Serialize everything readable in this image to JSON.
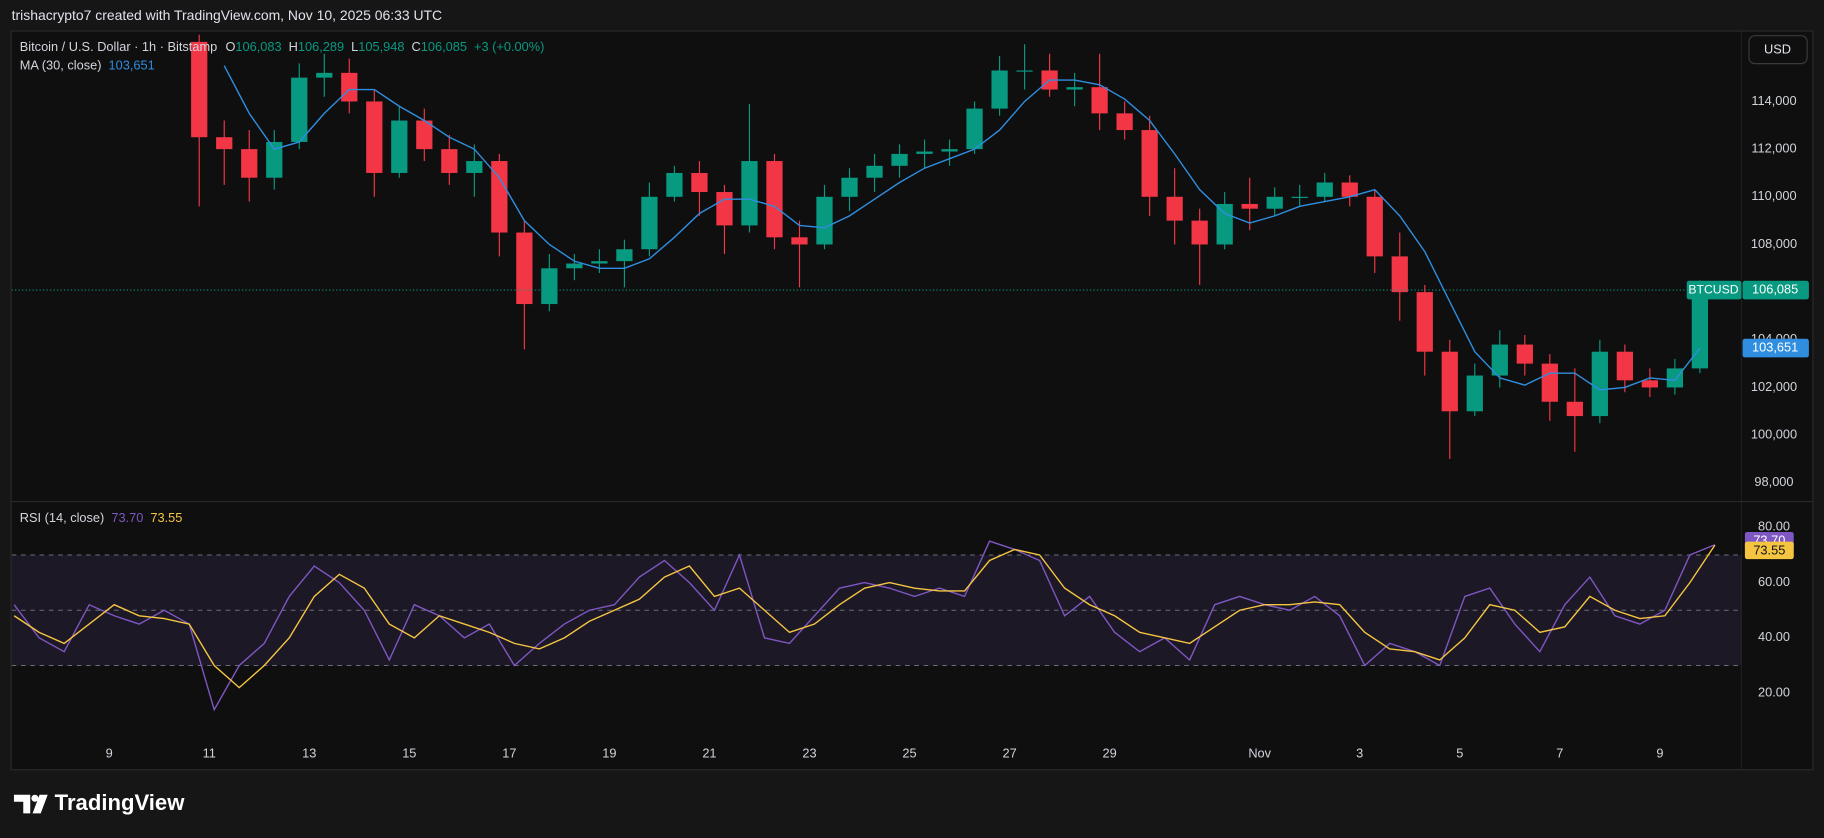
{
  "header": {
    "text": "trishacrypto7 created with TradingView.com, Nov 10, 2025 06:33 UTC"
  },
  "currency": "USD",
  "brand": "TradingView",
  "chart_data": [
    {
      "type": "candlestick",
      "title": "Bitcoin / U.S. Dollar · 1h · Bitstamp",
      "ohlc_labels": [
        {
          "key": "O",
          "value": "106,083"
        },
        {
          "key": "H",
          "value": "106,289"
        },
        {
          "key": "L",
          "value": "105,948"
        },
        {
          "key": "C",
          "value": "106,085"
        }
      ],
      "change": "+3 (+0.00%)",
      "up_color": "#089981",
      "down_color": "#f23645",
      "x": [
        10.8,
        11.3,
        11.8,
        12.3,
        12.8,
        13.3,
        13.8,
        14.3,
        14.8,
        15.3,
        15.8,
        16.3,
        16.8,
        17.3,
        17.8,
        18.3,
        18.8,
        19.3,
        19.8,
        20.3,
        20.8,
        21.3,
        21.8,
        22.3,
        22.8,
        23.3,
        23.8,
        24.3,
        24.8,
        25.3,
        25.8,
        26.3,
        26.8,
        27.3,
        27.8,
        28.3,
        28.8,
        29.3,
        29.8,
        30.3,
        30.8,
        31.3,
        31.8,
        32.3,
        32.8,
        33.3,
        33.8,
        34.3,
        34.8,
        35.3,
        35.8,
        36.3,
        36.8,
        37.3,
        37.8,
        38.3,
        38.8,
        39.3,
        39.8,
        40.3,
        40.8
      ],
      "open": [
        116500,
        112500,
        112000,
        110800,
        112300,
        115000,
        115200,
        114000,
        111000,
        113200,
        112000,
        111000,
        111500,
        108500,
        105500,
        107000,
        107200,
        107300,
        107800,
        110000,
        111000,
        110200,
        108800,
        111500,
        108300,
        108000,
        110000,
        110800,
        111300,
        111800,
        111900,
        112000,
        113700,
        115300,
        115300,
        114500,
        114600,
        113500,
        112800,
        110000,
        109000,
        108000,
        109700,
        109500,
        110000,
        110000,
        110600,
        110000,
        107500,
        106000,
        103500,
        101000,
        102500,
        103800,
        103000,
        101400,
        100800,
        103500,
        102300,
        102000,
        102800
      ],
      "high": [
        116800,
        113200,
        112800,
        112800,
        115600,
        116000,
        115800,
        114500,
        113800,
        113700,
        112600,
        112200,
        111800,
        109000,
        107600,
        107600,
        107800,
        108200,
        110600,
        111300,
        111500,
        110500,
        113900,
        111800,
        109000,
        110500,
        111200,
        111800,
        112200,
        112400,
        112400,
        114000,
        115900,
        116400,
        116000,
        115200,
        116000,
        114000,
        113400,
        111200,
        109500,
        110200,
        110800,
        110400,
        110500,
        111000,
        110900,
        110300,
        108500,
        106300,
        104000,
        103000,
        104400,
        104200,
        103400,
        102800,
        104000,
        103800,
        102800,
        103200,
        106500
      ],
      "low": [
        109600,
        110500,
        109800,
        110300,
        112000,
        114200,
        113500,
        110000,
        110800,
        111500,
        110500,
        110000,
        107500,
        103600,
        105200,
        106500,
        106800,
        106200,
        107500,
        109800,
        109200,
        107600,
        108500,
        107800,
        106200,
        107800,
        109400,
        110200,
        110800,
        111200,
        111300,
        111800,
        113400,
        114500,
        114200,
        113800,
        112800,
        112400,
        109200,
        108000,
        106300,
        107800,
        108600,
        109200,
        109600,
        109800,
        109600,
        106800,
        104800,
        102500,
        99000,
        100800,
        102000,
        102500,
        100600,
        99300,
        100500,
        101800,
        101600,
        101700,
        102600
      ],
      "close": [
        112500,
        112000,
        110800,
        112300,
        115000,
        115200,
        114000,
        111000,
        113200,
        112000,
        111000,
        111500,
        108500,
        105500,
        107000,
        107200,
        107300,
        107800,
        110000,
        111000,
        110200,
        108800,
        111500,
        108300,
        108000,
        110000,
        110800,
        111300,
        111800,
        111900,
        112000,
        113700,
        115300,
        115300,
        114500,
        114600,
        113500,
        112800,
        110000,
        109000,
        108000,
        109700,
        109500,
        110000,
        110000,
        110600,
        110000,
        107500,
        106000,
        103500,
        101000,
        102500,
        103800,
        103000,
        101400,
        100800,
        103500,
        102300,
        102000,
        102800,
        106085
      ],
      "series": [
        {
          "name": "MA (30, close)",
          "color": "#2f8ee0",
          "last_label": "103,651",
          "values": [
            null,
            115500,
            113500,
            112000,
            112300,
            113500,
            114500,
            114500,
            113800,
            113200,
            112500,
            112000,
            110800,
            109000,
            108000,
            107300,
            107000,
            107000,
            107400,
            108300,
            109300,
            109900,
            109900,
            109600,
            108800,
            108700,
            109200,
            109900,
            110600,
            111200,
            111600,
            112000,
            112800,
            114000,
            114900,
            114900,
            114700,
            114100,
            113200,
            111800,
            110300,
            109300,
            108900,
            109200,
            109600,
            109800,
            110000,
            110300,
            109200,
            107700,
            105600,
            103500,
            102400,
            102100,
            102600,
            102600,
            101900,
            102000,
            102400,
            102300,
            103651
          ]
        }
      ],
      "last_price": {
        "name": "BTCUSD",
        "value": 106085,
        "label": "106,085"
      },
      "xlim": [
        7.05,
        41.63
      ],
      "ylim": [
        97260,
        116930
      ],
      "yticks": [
        {
          "value": 98000,
          "label": "98,000"
        },
        {
          "value": 100000,
          "label": "100,000"
        },
        {
          "value": 102000,
          "label": "102,000"
        },
        {
          "value": 104000,
          "label": "104,000"
        },
        {
          "value": 106000,
          "label": "106,000"
        },
        {
          "value": 108000,
          "label": "108,000"
        },
        {
          "value": 110000,
          "label": "110,000"
        },
        {
          "value": 112000,
          "label": "112,000"
        },
        {
          "value": 114000,
          "label": "114,000"
        }
      ]
    },
    {
      "type": "line",
      "x": [
        7.1,
        7.6,
        8.1,
        8.6,
        9.1,
        9.6,
        10.1,
        10.6,
        11.1,
        11.6,
        12.1,
        12.6,
        13.1,
        13.6,
        14.1,
        14.6,
        15.1,
        15.6,
        16.1,
        16.6,
        17.1,
        17.6,
        18.1,
        18.6,
        19.1,
        19.6,
        20.1,
        20.6,
        21.1,
        21.6,
        22.1,
        22.6,
        23.1,
        23.6,
        24.1,
        24.6,
        25.1,
        25.6,
        26.1,
        26.6,
        27.1,
        27.6,
        28.1,
        28.6,
        29.1,
        29.6,
        30.1,
        30.6,
        31.1,
        31.6,
        32.1,
        32.6,
        33.1,
        33.6,
        34.1,
        34.6,
        35.1,
        35.6,
        36.1,
        36.6,
        37.1,
        37.6,
        38.1,
        38.6,
        39.1,
        39.6,
        40.1,
        40.6,
        41.1
      ],
      "series": [
        {
          "name": "RSI (14, close)",
          "color": "#7e57c2",
          "last_label": "73.70",
          "values": [
            52,
            40,
            35,
            52,
            48,
            45,
            50,
            45,
            14,
            30,
            38,
            55,
            66,
            60,
            50,
            32,
            52,
            48,
            40,
            45,
            30,
            38,
            45,
            50,
            52,
            62,
            68,
            60,
            50,
            70,
            40,
            38,
            48,
            58,
            60,
            58,
            55,
            58,
            55,
            75,
            72,
            68,
            48,
            55,
            42,
            35,
            40,
            32,
            52,
            55,
            52,
            50,
            55,
            48,
            30,
            38,
            35,
            30,
            55,
            58,
            45,
            35,
            52,
            62,
            48,
            45,
            50,
            70,
            73.7
          ]
        },
        {
          "color": "#f5c542",
          "last_label": "73.55",
          "values": [
            48,
            42,
            38,
            45,
            52,
            48,
            47,
            45,
            30,
            22,
            30,
            40,
            55,
            63,
            58,
            45,
            40,
            48,
            45,
            42,
            38,
            36,
            40,
            46,
            50,
            54,
            62,
            66,
            55,
            58,
            50,
            42,
            45,
            52,
            58,
            60,
            58,
            57,
            57,
            68,
            72,
            70,
            58,
            52,
            48,
            42,
            40,
            38,
            44,
            50,
            52,
            52,
            53,
            52,
            42,
            36,
            35,
            32,
            40,
            52,
            50,
            42,
            44,
            55,
            50,
            47,
            48,
            60,
            73.55
          ]
        }
      ],
      "bands": [
        30,
        50,
        70
      ],
      "xlim": [
        7.05,
        41.63
      ],
      "ylim": [
        4.7,
        88.9
      ],
      "yticks": [
        {
          "value": 20,
          "label": "20.00"
        },
        {
          "value": 40,
          "label": "40.00"
        },
        {
          "value": 60,
          "label": "60.00"
        },
        {
          "value": 80,
          "label": "80.00"
        }
      ],
      "xticks": [
        9,
        11,
        13,
        15,
        17,
        19,
        21,
        23,
        25,
        27,
        29,
        {
          "value": 32,
          "label": "Nov"
        },
        {
          "value": 34,
          "label": "3"
        },
        {
          "value": 36,
          "label": "5"
        },
        {
          "value": 38,
          "label": "7"
        },
        {
          "value": 40,
          "label": "9"
        }
      ]
    }
  ]
}
